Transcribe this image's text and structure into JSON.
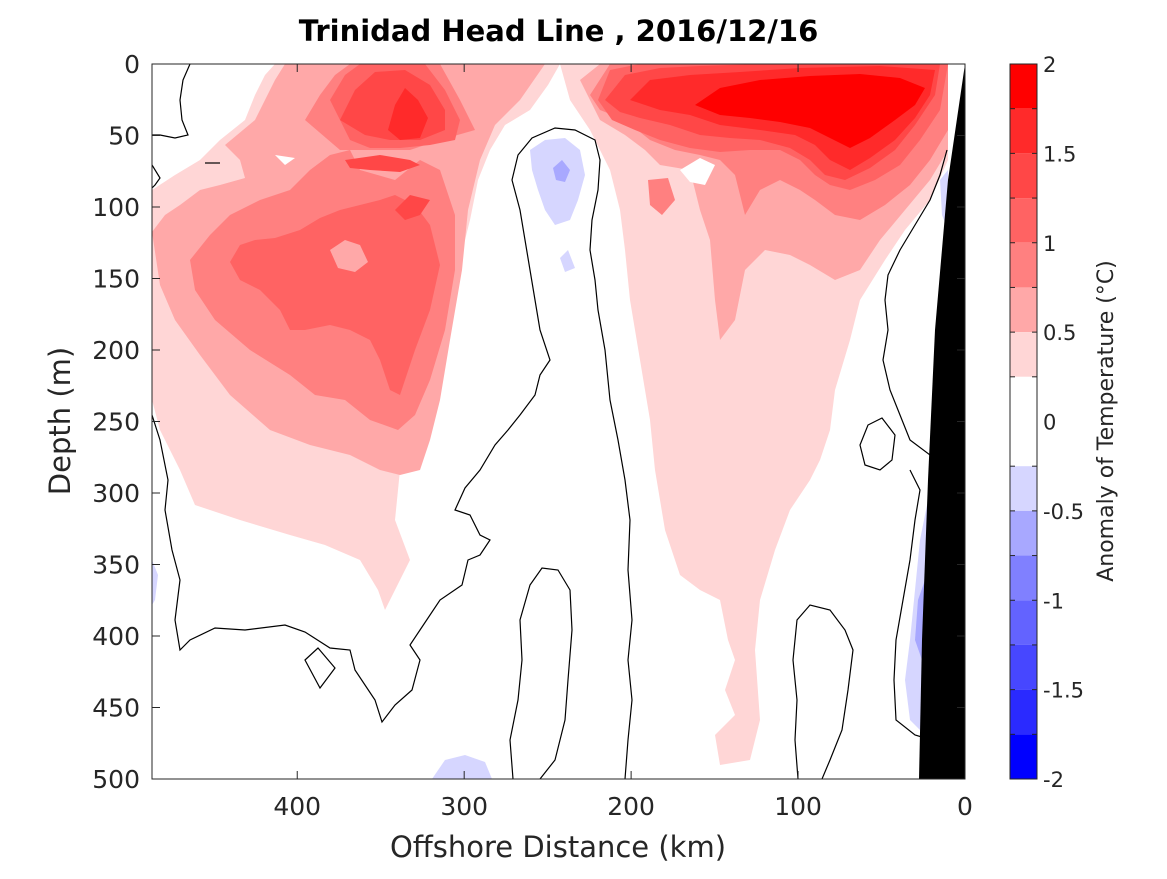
{
  "chart_data": {
    "type": "heatmap",
    "title": "Trinidad Head Line , 2016/12/16",
    "xlabel": "Offshore Distance (km)",
    "ylabel": "Depth (m)",
    "colorbar_label": "Anomaly of Temperature (°C)",
    "xlim": [
      487,
      0
    ],
    "ylim": [
      0,
      500
    ],
    "x_reversed": true,
    "y_reversed": true,
    "x_ticks": [
      400,
      300,
      200,
      100,
      0
    ],
    "y_ticks": [
      0,
      50,
      100,
      150,
      200,
      250,
      300,
      350,
      400,
      450,
      500
    ],
    "colorbar": {
      "range": [
        -2,
        2
      ],
      "ticks": [
        2,
        1.5,
        1,
        0.5,
        0,
        -0.5,
        -1,
        -1.5,
        -2
      ],
      "levels": [
        {
          "from": 1.75,
          "to": 2.0,
          "color": "#ff0000"
        },
        {
          "from": 1.5,
          "to": 1.75,
          "color": "#ff2a2a"
        },
        {
          "from": 1.25,
          "to": 1.5,
          "color": "#ff4747"
        },
        {
          "from": 1.0,
          "to": 1.25,
          "color": "#ff6363"
        },
        {
          "from": 0.75,
          "to": 1.0,
          "color": "#ff8080"
        },
        {
          "from": 0.5,
          "to": 0.75,
          "color": "#ffa8a8"
        },
        {
          "from": 0.25,
          "to": 0.5,
          "color": "#ffd6d6"
        },
        {
          "from": -0.25,
          "to": 0.25,
          "color": "#ffffff"
        },
        {
          "from": -0.5,
          "to": -0.25,
          "color": "#d6d6ff"
        },
        {
          "from": -0.75,
          "to": -0.5,
          "color": "#a8a8ff"
        },
        {
          "from": -1.0,
          "to": -0.75,
          "color": "#8080ff"
        },
        {
          "from": -1.25,
          "to": -1.0,
          "color": "#6363ff"
        },
        {
          "from": -1.5,
          "to": -1.25,
          "color": "#4747ff"
        },
        {
          "from": -1.75,
          "to": -1.5,
          "color": "#2a2aff"
        },
        {
          "from": -2.0,
          "to": -1.75,
          "color": "#0000ff"
        }
      ]
    },
    "grid": false,
    "features": [
      {
        "name": "warm-core-offshore",
        "center_km": 370,
        "center_depth_m": 140,
        "peak_anomaly": 1.1
      },
      {
        "name": "warm-near-surface-offshore",
        "center_km": 340,
        "center_depth_m": 35,
        "peak_anomaly": 1.6
      },
      {
        "name": "warm-near-surface-nearshore",
        "center_km": 90,
        "center_depth_m": 35,
        "peak_anomaly": 1.9
      },
      {
        "name": "cool-patch-mid-section",
        "center_km": 240,
        "center_depth_m": 80,
        "peak_anomaly": -0.6
      },
      {
        "name": "cool-band-coastal",
        "center_km": 25,
        "center_depth_m": 400,
        "peak_anomaly": -0.5
      }
    ],
    "seafloor_color": "#000000"
  }
}
